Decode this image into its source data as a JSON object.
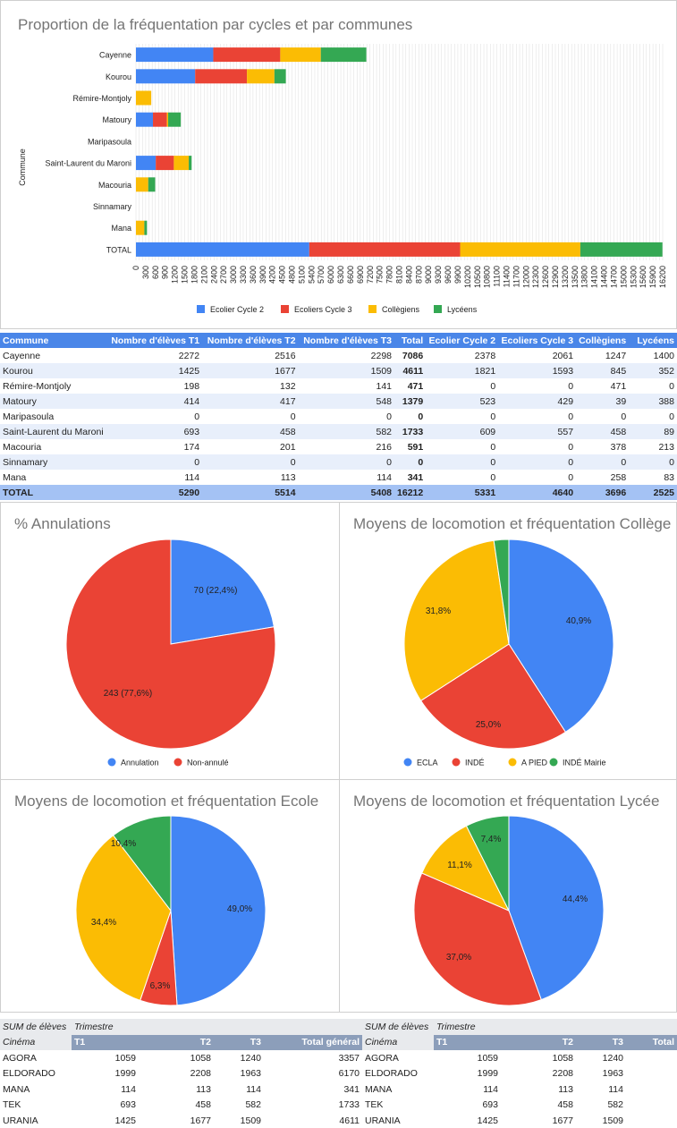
{
  "bar_chart": {
    "title": "Proportion de la fréquentation par cycles et par communes",
    "ylabel": "Commune",
    "legend_position": "bottom",
    "legend": [
      "Ecolier Cycle 2",
      "Ecoliers Cycle 3",
      "Collègiens",
      "Lycéens"
    ],
    "colors": [
      "#4285f4",
      "#ea4335",
      "#fbbc04",
      "#34a853"
    ],
    "ticks": [
      "0",
      "300",
      "600",
      "900",
      "1200",
      "1500",
      "1800",
      "2100",
      "2400",
      "2700",
      "3000",
      "3300",
      "3600",
      "3900",
      "4200",
      "4500",
      "4800",
      "5100",
      "5400",
      "5700",
      "6000",
      "6300",
      "6600",
      "6900",
      "7200",
      "7500",
      "7800",
      "8100",
      "8400",
      "8700",
      "9000",
      "9300",
      "9600",
      "9900",
      "10200",
      "10500",
      "10800",
      "11100",
      "11400",
      "11700",
      "12000",
      "12300",
      "12600",
      "12900",
      "13200",
      "13500",
      "13800",
      "14100",
      "14400",
      "14700",
      "15000",
      "15300",
      "15600",
      "15900",
      "16200"
    ]
  },
  "chart_data": [
    {
      "type": "bar",
      "orientation": "horizontal",
      "stacked": true,
      "title": "Proportion de la fréquentation par cycles et par communes",
      "ylabel": "Commune",
      "xlim": [
        0,
        16200
      ],
      "grid": true,
      "categories": [
        "Cayenne",
        "Kourou",
        "Rémire-Montjoly",
        "Matoury",
        "Maripasoula",
        "Saint-Laurent du Maroni",
        "Macouria",
        "Sinnamary",
        "Mana",
        "TOTAL"
      ],
      "series": [
        {
          "name": "Ecolier Cycle 2",
          "values": [
            2378,
            1821,
            0,
            523,
            0,
            609,
            0,
            0,
            0,
            5331
          ]
        },
        {
          "name": "Ecoliers Cycle 3",
          "values": [
            2061,
            1593,
            0,
            429,
            0,
            557,
            0,
            0,
            0,
            4640
          ]
        },
        {
          "name": "Collègiens",
          "values": [
            1247,
            845,
            471,
            39,
            0,
            458,
            378,
            0,
            258,
            3696
          ]
        },
        {
          "name": "Lycéens",
          "values": [
            1400,
            352,
            0,
            388,
            0,
            89,
            213,
            0,
            83,
            2525
          ]
        }
      ]
    },
    {
      "type": "pie",
      "title": "% Annulations",
      "legend_position": "bottom",
      "slices": [
        {
          "label": "Annulation",
          "value": 70,
          "display": "70 (22,4%)",
          "color": "#4285f4"
        },
        {
          "label": "Non-annulé",
          "value": 243,
          "display": "243 (77,6%)",
          "color": "#ea4335"
        }
      ]
    },
    {
      "type": "pie",
      "title": "Moyens de locomotion et fréquentation Collège",
      "legend_position": "bottom",
      "slices": [
        {
          "label": "ECLA",
          "value": 40.9,
          "display": "40,9%",
          "color": "#4285f4"
        },
        {
          "label": "INDÉ",
          "value": 25.0,
          "display": "25,0%",
          "color": "#ea4335"
        },
        {
          "label": "A PIED",
          "value": 31.8,
          "display": "31,8%",
          "color": "#fbbc04"
        },
        {
          "label": "INDÉ Mairie",
          "value": 2.3,
          "display": "",
          "color": "#34a853"
        }
      ]
    },
    {
      "type": "pie",
      "title": "Moyens de locomotion et fréquentation Ecole",
      "slices": [
        {
          "label": "",
          "value": 49.0,
          "display": "49,0%",
          "color": "#4285f4"
        },
        {
          "label": "",
          "value": 6.3,
          "display": "6,3%",
          "color": "#ea4335"
        },
        {
          "label": "",
          "value": 34.4,
          "display": "34,4%",
          "color": "#fbbc04"
        },
        {
          "label": "",
          "value": 10.4,
          "display": "10,4%",
          "color": "#34a853"
        }
      ]
    },
    {
      "type": "pie",
      "title": "Moyens de locomotion et fréquentation Lycée",
      "slices": [
        {
          "label": "",
          "value": 44.4,
          "display": "44,4%",
          "color": "#4285f4"
        },
        {
          "label": "",
          "value": 37.0,
          "display": "37,0%",
          "color": "#ea4335"
        },
        {
          "label": "",
          "value": 11.1,
          "display": "11,1%",
          "color": "#fbbc04"
        },
        {
          "label": "",
          "value": 7.4,
          "display": "7,4%",
          "color": "#34a853"
        }
      ]
    }
  ],
  "main_table": {
    "headers": [
      "Commune",
      "Nombre d'élèves T1",
      "Nombre d'élèves T2",
      "Nombre d'élèves T3",
      "Total",
      "Ecolier Cycle 2",
      "Ecoliers Cycle 3",
      "Collègiens",
      "Lycéens"
    ],
    "rows": [
      [
        "Cayenne",
        "2272",
        "2516",
        "2298",
        "7086",
        "2378",
        "2061",
        "1247",
        "1400"
      ],
      [
        "Kourou",
        "1425",
        "1677",
        "1509",
        "4611",
        "1821",
        "1593",
        "845",
        "352"
      ],
      [
        "Rémire-Montjoly",
        "198",
        "132",
        "141",
        "471",
        "0",
        "0",
        "471",
        "0"
      ],
      [
        "Matoury",
        "414",
        "417",
        "548",
        "1379",
        "523",
        "429",
        "39",
        "388"
      ],
      [
        "Maripasoula",
        "0",
        "0",
        "0",
        "0",
        "0",
        "0",
        "0",
        "0"
      ],
      [
        "Saint-Laurent du Maroni",
        "693",
        "458",
        "582",
        "1733",
        "609",
        "557",
        "458",
        "89"
      ],
      [
        "Macouria",
        "174",
        "201",
        "216",
        "591",
        "0",
        "0",
        "378",
        "213"
      ],
      [
        "Sinnamary",
        "0",
        "0",
        "0",
        "0",
        "0",
        "0",
        "0",
        "0"
      ],
      [
        "Mana",
        "114",
        "113",
        "114",
        "341",
        "0",
        "0",
        "258",
        "83"
      ]
    ],
    "total_row": [
      "TOTAL",
      "5290",
      "5514",
      "5408",
      "16212",
      "5331",
      "4640",
      "3696",
      "2525"
    ]
  },
  "pivot_left": {
    "sum_label": "SUM de élèves",
    "group_label": "Trimestre",
    "row_label": "Cinéma",
    "columns": [
      "T1",
      "T2",
      "T3",
      "Total général"
    ],
    "rows": [
      [
        "AGORA",
        "1059",
        "1058",
        "1240",
        "3357"
      ],
      [
        "ELDORADO",
        "1999",
        "2208",
        "1963",
        "6170"
      ],
      [
        "MANA",
        "114",
        "113",
        "114",
        "341"
      ],
      [
        "TEK",
        "693",
        "458",
        "582",
        "1733"
      ],
      [
        "URANIA",
        "1425",
        "1677",
        "1509",
        "4611"
      ]
    ]
  },
  "pivot_right": {
    "sum_label": "SUM de élèves",
    "group_label": "Trimestre",
    "row_label": "Cinéma",
    "columns": [
      "T1",
      "T2",
      "T3",
      "Total"
    ],
    "rows": [
      [
        "AGORA",
        "1059",
        "1058",
        "1240"
      ],
      [
        "ELDORADO",
        "1999",
        "2208",
        "1963"
      ],
      [
        "MANA",
        "114",
        "113",
        "114"
      ],
      [
        "TEK",
        "693",
        "458",
        "582"
      ],
      [
        "URANIA",
        "1425",
        "1677",
        "1509"
      ]
    ]
  }
}
